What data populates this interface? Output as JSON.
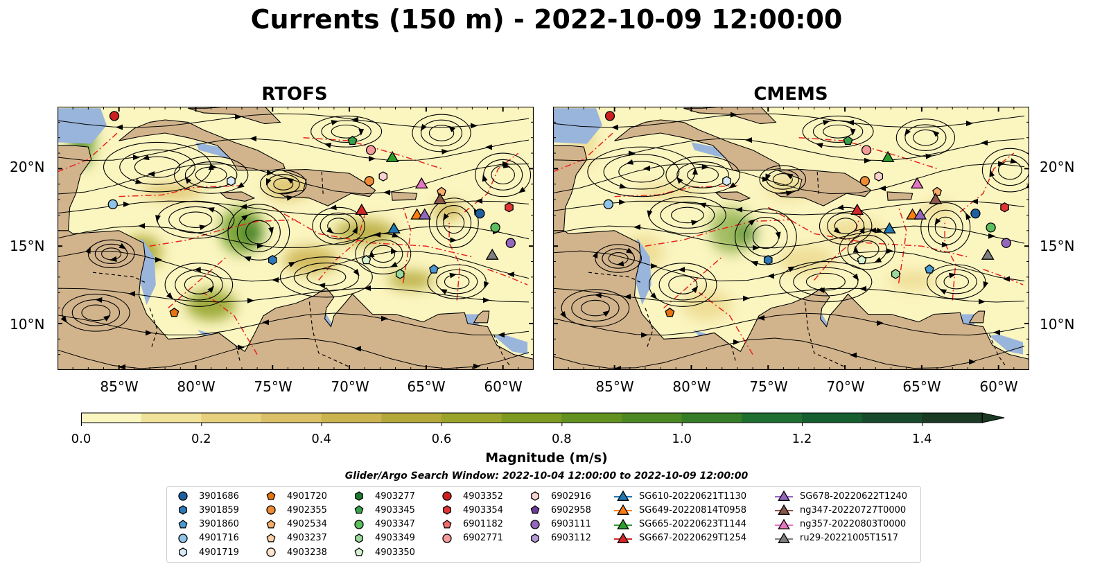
{
  "title": "Currents (150 m) - 2022-10-09 12:00:00",
  "panels": [
    {
      "title": "RTOFS"
    },
    {
      "title": "CMEMS"
    }
  ],
  "map_extent": {
    "lon": [
      -89,
      -58
    ],
    "lat": [
      7,
      24
    ]
  },
  "lat_ticks": [
    {
      "value": 20,
      "label": "20°N"
    },
    {
      "value": 15,
      "label": "15°N"
    },
    {
      "value": 10,
      "label": "10°N"
    }
  ],
  "lon_ticks": [
    {
      "value": -85,
      "label": "85°W"
    },
    {
      "value": -80,
      "label": "80°W"
    },
    {
      "value": -75,
      "label": "75°W"
    },
    {
      "value": -70,
      "label": "70°W"
    },
    {
      "value": -65,
      "label": "65°W"
    },
    {
      "value": -60,
      "label": "60°W"
    }
  ],
  "colorbar": {
    "label": "Magnitude (m/s)",
    "min": 0.0,
    "max": 1.5,
    "ticks": [
      "0.0",
      "0.2",
      "0.4",
      "0.6",
      "0.8",
      "1.0",
      "1.2",
      "1.4"
    ],
    "colors": [
      "#fbf5c0",
      "#f1e29a",
      "#e6cf7d",
      "#dbc068",
      "#cbb34f",
      "#b4a83b",
      "#9aa42a",
      "#7e9a20",
      "#62911f",
      "#4c8822",
      "#357d27",
      "#1f6f30",
      "#155e30",
      "#174b2c",
      "#1a3a23"
    ],
    "extend": "max"
  },
  "colors": {
    "land": "#d2b48c",
    "water_shallow": "#9ab5dc",
    "eez_line": "#e8231e"
  },
  "search_window": "Glider/Argo Search Window: 2022-10-04 12:00:00 to 2022-10-09 12:00:00",
  "legend": [
    {
      "label": "3901686",
      "marker": "circle",
      "color": "#1f5fa0"
    },
    {
      "label": "3901859",
      "marker": "hexagon",
      "color": "#2f78b8"
    },
    {
      "label": "3901860",
      "marker": "pentagon",
      "color": "#4a98d0"
    },
    {
      "label": "4901716",
      "marker": "circle",
      "color": "#8fc3e8"
    },
    {
      "label": "4901719",
      "marker": "hexagon",
      "color": "#d8eaf7"
    },
    {
      "label": "4901720",
      "marker": "pentagon",
      "color": "#e6730f"
    },
    {
      "label": "4902355",
      "marker": "circle",
      "color": "#f08b35"
    },
    {
      "label": "4902534",
      "marker": "pentagon",
      "color": "#f6ac6a"
    },
    {
      "label": "4903237",
      "marker": "pentagon",
      "color": "#fad0a4"
    },
    {
      "label": "4903238",
      "marker": "circle",
      "color": "#fde6ce"
    },
    {
      "label": "4903277",
      "marker": "hexagon",
      "color": "#1e7a2e"
    },
    {
      "label": "4903345",
      "marker": "pentagon",
      "color": "#38a24a"
    },
    {
      "label": "4903347",
      "marker": "circle",
      "color": "#5cbe5c"
    },
    {
      "label": "4903349",
      "marker": "hexagon",
      "color": "#9ad99a"
    },
    {
      "label": "4903350",
      "marker": "pentagon",
      "color": "#d5f2d0"
    },
    {
      "label": "4903352",
      "marker": "circle",
      "color": "#cc2020"
    },
    {
      "label": "4903354",
      "marker": "hexagon",
      "color": "#e03535"
    },
    {
      "label": "6901182",
      "marker": "pentagon",
      "color": "#ee6a6a"
    },
    {
      "label": "6902771",
      "marker": "circle",
      "color": "#f59a9a"
    },
    {
      "label": "6902916",
      "marker": "hexagon",
      "color": "#fbd2d2"
    },
    {
      "label": "6902958",
      "marker": "pentagon",
      "color": "#6a3d9a"
    },
    {
      "label": "6903111",
      "marker": "circle",
      "color": "#9467bd"
    },
    {
      "label": "6903112",
      "marker": "hexagon",
      "color": "#b59ad8"
    },
    {
      "label": "SG610-20220621T1130",
      "marker": "triangle-line",
      "color": "#1f77b4"
    },
    {
      "label": "SG649-20220814T0958",
      "marker": "triangle-line",
      "color": "#ff7f0e"
    },
    {
      "label": "SG665-20220623T1144",
      "marker": "triangle-line",
      "color": "#2ca02c"
    },
    {
      "label": "SG667-20220629T1254",
      "marker": "triangle-line",
      "color": "#d62728"
    },
    {
      "label": "SG678-20220622T1240",
      "marker": "triangle-line",
      "color": "#9467bd"
    },
    {
      "label": "ng347-20220727T0000",
      "marker": "triangle-line",
      "color": "#8c564b"
    },
    {
      "label": "ng357-20220803T0000",
      "marker": "triangle-line",
      "color": "#e377c2"
    },
    {
      "label": "ru29-20221005T1517",
      "marker": "triangle-line",
      "color": "#7f7f7f"
    }
  ],
  "platforms": [
    {
      "id": "4903352",
      "lon": -85.3,
      "lat": 23.4,
      "marker": "circle",
      "color": "#cc2020"
    },
    {
      "id": "4903345",
      "lon": -69.8,
      "lat": 21.8,
      "marker": "pentagon",
      "color": "#38a24a"
    },
    {
      "id": "6902771",
      "lon": -68.6,
      "lat": 21.2,
      "marker": "circle",
      "color": "#f59a9a"
    },
    {
      "id": "SG665-20220623T1144",
      "lon": -67.2,
      "lat": 20.7,
      "marker": "triangle",
      "color": "#2ca02c"
    },
    {
      "id": "4901719",
      "lon": -77.7,
      "lat": 19.2,
      "marker": "hexagon",
      "color": "#d8eaf7"
    },
    {
      "id": "4902355",
      "lon": -68.7,
      "lat": 19.2,
      "marker": "circle",
      "color": "#f08b35"
    },
    {
      "id": "6902916",
      "lon": -67.8,
      "lat": 19.5,
      "marker": "hexagon",
      "color": "#fbd2d2"
    },
    {
      "id": "ng357-20220803T0000",
      "lon": -65.3,
      "lat": 19.0,
      "marker": "triangle",
      "color": "#e377c2"
    },
    {
      "id": "4902534",
      "lon": -64.0,
      "lat": 18.5,
      "marker": "pentagon",
      "color": "#f6ac6a"
    },
    {
      "id": "ng347-20220727T0000",
      "lon": -64.1,
      "lat": 18.0,
      "marker": "triangle",
      "color": "#8c564b"
    },
    {
      "id": "4901716",
      "lon": -85.4,
      "lat": 17.7,
      "marker": "circle",
      "color": "#8fc3e8"
    },
    {
      "id": "SG667-20220629T1254",
      "lon": -69.2,
      "lat": 17.3,
      "marker": "triangle",
      "color": "#d62728"
    },
    {
      "id": "SG649-20220814T0958",
      "lon": -65.6,
      "lat": 17.0,
      "marker": "triangle",
      "color": "#ff7f0e"
    },
    {
      "id": "SG678-20220622T1240",
      "lon": -65.1,
      "lat": 17.0,
      "marker": "triangle",
      "color": "#9467bd"
    },
    {
      "id": "SG610-20220621T1130",
      "lon": -67.1,
      "lat": 16.1,
      "marker": "triangle",
      "color": "#1f77b4"
    },
    {
      "id": "3901686",
      "lon": -61.5,
      "lat": 17.1,
      "marker": "circle",
      "color": "#1f5fa0"
    },
    {
      "id": "4903354",
      "lon": -59.6,
      "lat": 17.5,
      "marker": "hexagon",
      "color": "#e03535"
    },
    {
      "id": "4903347",
      "lon": -60.5,
      "lat": 16.2,
      "marker": "circle",
      "color": "#5cbe5c"
    },
    {
      "id": "6903111",
      "lon": -59.5,
      "lat": 15.2,
      "marker": "circle",
      "color": "#9467bd"
    },
    {
      "id": "ru29-20221005T1517",
      "lon": -60.7,
      "lat": 14.4,
      "marker": "triangle",
      "color": "#7f7f7f"
    },
    {
      "id": "3901859",
      "lon": -75.0,
      "lat": 14.1,
      "marker": "hexagon",
      "color": "#2f78b8"
    },
    {
      "id": "4903350",
      "lon": -68.9,
      "lat": 14.1,
      "marker": "pentagon",
      "color": "#d5f2d0"
    },
    {
      "id": "3901860",
      "lon": -64.5,
      "lat": 13.5,
      "marker": "pentagon",
      "color": "#4a98d0"
    },
    {
      "id": "4903349",
      "lon": -66.7,
      "lat": 13.2,
      "marker": "hexagon",
      "color": "#9ad99a"
    },
    {
      "id": "4901720",
      "lon": -81.4,
      "lat": 10.7,
      "marker": "pentagon",
      "color": "#e6730f"
    }
  ]
}
